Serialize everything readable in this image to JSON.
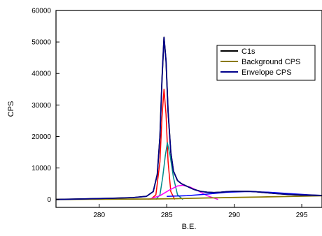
{
  "chart_data": {
    "type": "line",
    "title": "",
    "xlabel": "B.E.",
    "ylabel": "CPS",
    "xlim": [
      276.8,
      296.5
    ],
    "ylim": [
      -2500,
      60000
    ],
    "x_ticks": [
      280,
      285,
      290,
      295
    ],
    "y_ticks": [
      0,
      10000,
      20000,
      30000,
      40000,
      50000,
      60000
    ],
    "grid": false,
    "legend_position": "top-right",
    "series": [
      {
        "name": "C1s",
        "color": "#000000",
        "x": [
          276.8,
          279,
          281,
          282.5,
          283.5,
          284.0,
          284.3,
          284.5,
          284.65,
          284.8,
          284.95,
          285.1,
          285.3,
          285.5,
          285.8,
          286.1,
          286.5,
          287.0,
          287.5,
          288.0,
          288.5,
          289.0,
          289.5,
          290.0,
          290.5,
          291.0,
          291.5,
          292.0,
          293.0,
          294.0,
          295.0,
          296.5
        ],
        "y": [
          0,
          200,
          400,
          600,
          1000,
          2500,
          8000,
          20000,
          38000,
          51500,
          44000,
          28000,
          15000,
          9000,
          6000,
          5000,
          4200,
          3200,
          2600,
          2300,
          2200,
          2300,
          2500,
          2600,
          2600,
          2600,
          2500,
          2300,
          1900,
          1600,
          1400,
          1300
        ]
      },
      {
        "name": "Background CPS",
        "color": "#8b7a00",
        "x": [
          276.8,
          280,
          284,
          286,
          288,
          290,
          292,
          294,
          296.5
        ],
        "y": [
          0,
          100,
          150,
          300,
          500,
          650,
          800,
          950,
          1200
        ]
      },
      {
        "name": "Envelope CPS",
        "color": "#00008b",
        "x": [
          276.8,
          279,
          281,
          282.5,
          283.5,
          284.0,
          284.3,
          284.5,
          284.65,
          284.8,
          284.95,
          285.1,
          285.3,
          285.5,
          285.8,
          286.1,
          286.5,
          287.0,
          287.5,
          288.0,
          288.5,
          289.0,
          289.5,
          290.0,
          290.5,
          291.0,
          291.5,
          292.0,
          293.0,
          294.0,
          295.0,
          296.5
        ],
        "y": [
          0,
          200,
          400,
          600,
          1000,
          2500,
          8000,
          20000,
          38000,
          51500,
          44000,
          28000,
          15000,
          9000,
          6000,
          5000,
          4200,
          3200,
          2600,
          2300,
          2200,
          2300,
          2500,
          2600,
          2600,
          2600,
          2500,
          2300,
          1900,
          1600,
          1400,
          1300
        ]
      }
    ],
    "component_peaks": [
      {
        "color": "#ff0000",
        "x": [
          283.8,
          284.2,
          284.5,
          284.65,
          284.8,
          284.95,
          285.1,
          285.3,
          285.6
        ],
        "y": [
          0,
          1500,
          12000,
          26000,
          35000,
          27000,
          12000,
          2500,
          0
        ]
      },
      {
        "color": "#008b8b",
        "x": [
          284.2,
          284.5,
          284.7,
          284.9,
          285.05,
          285.25,
          285.5,
          285.8,
          286.2
        ],
        "y": [
          0,
          1500,
          7000,
          14000,
          18000,
          14000,
          7000,
          1500,
          0
        ]
      },
      {
        "color": "#ff00ff",
        "x": [
          283.6,
          284.5,
          285.2,
          285.8,
          286.2,
          286.7,
          287.3,
          288.0,
          288.8
        ],
        "y": [
          0,
          1200,
          3000,
          4300,
          4500,
          4000,
          2800,
          1200,
          0
        ]
      },
      {
        "color": "#0000ff",
        "x": [
          285.0,
          286.5,
          288.0,
          289.5,
          291.0,
          292.5,
          294.0,
          295.5,
          296.5
        ],
        "y": [
          1000,
          1200,
          1700,
          2300,
          2500,
          2300,
          1900,
          1500,
          1300
        ]
      }
    ]
  }
}
